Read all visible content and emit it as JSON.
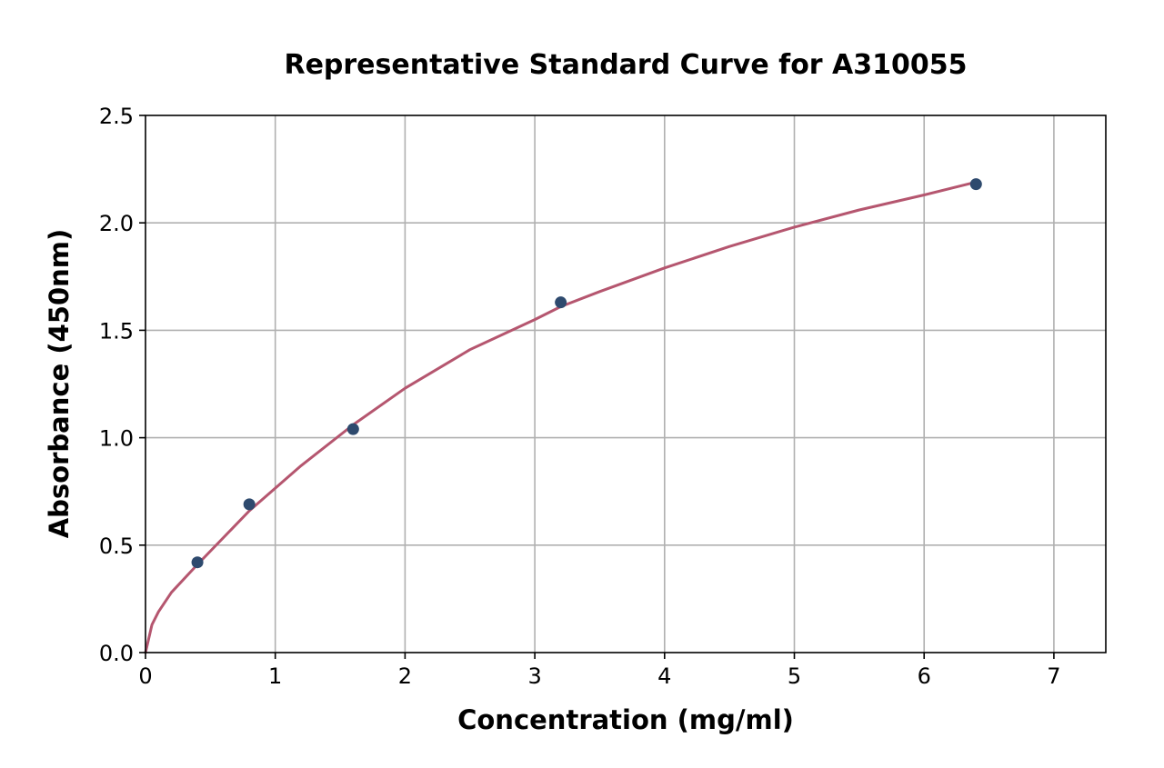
{
  "chart_data": {
    "type": "scatter",
    "title": "Representative Standard Curve for A310055",
    "xlabel": "Concentration (mg/ml)",
    "ylabel": "Absorbance (450nm)",
    "xlim": [
      0,
      7.4
    ],
    "ylim": [
      0,
      2.5
    ],
    "xticks": [
      0,
      1,
      2,
      3,
      4,
      5,
      6,
      7
    ],
    "xtick_labels": [
      "0",
      "1",
      "2",
      "3",
      "4",
      "5",
      "6",
      "7"
    ],
    "yticks": [
      0,
      0.5,
      1.0,
      1.5,
      2.0,
      2.5
    ],
    "ytick_labels": [
      "0.0",
      "0.5",
      "1.0",
      "1.5",
      "2.0",
      "2.5"
    ],
    "grid": true,
    "series": [
      {
        "kind": "points",
        "x": [
          0.4,
          0.8,
          1.6,
          3.2,
          6.4
        ],
        "y": [
          0.42,
          0.69,
          1.04,
          1.63,
          2.18
        ],
        "color": "#2e4a6e"
      },
      {
        "kind": "fitted-curve",
        "x": [
          0,
          0.05,
          0.1,
          0.2,
          0.4,
          0.8,
          1.2,
          1.6,
          2.0,
          2.5,
          3.0,
          3.2,
          3.5,
          4.0,
          4.5,
          5.0,
          5.5,
          6.0,
          6.4
        ],
        "y": [
          0,
          0.13,
          0.19,
          0.28,
          0.41,
          0.66,
          0.87,
          1.06,
          1.23,
          1.41,
          1.55,
          1.61,
          1.68,
          1.79,
          1.89,
          1.98,
          2.06,
          2.13,
          2.19
        ],
        "color": "#b5566f"
      }
    ]
  }
}
